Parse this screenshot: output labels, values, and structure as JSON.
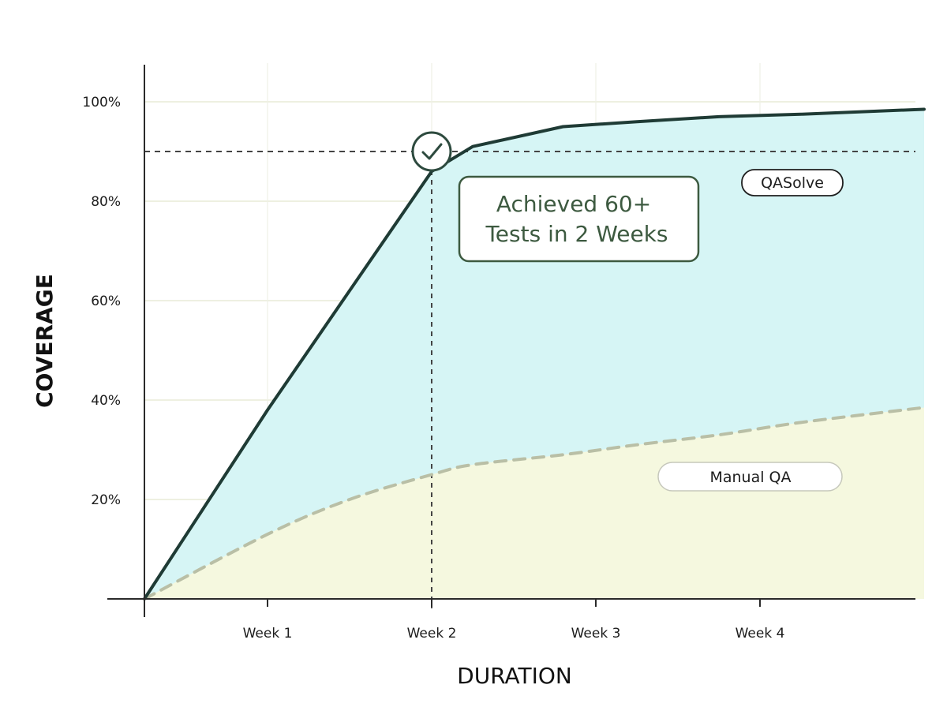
{
  "chart_data": {
    "type": "area",
    "x": [
      0,
      0.75,
      1.25,
      1.75,
      2.0,
      2.55,
      3.0,
      3.5,
      4.0,
      4.75
    ],
    "categories": [
      "Week 1",
      "Week 2",
      "Week 3",
      "Week 4"
    ],
    "category_positions": [
      0.75,
      1.75,
      2.75,
      3.75
    ],
    "series": [
      {
        "name": "QASolve",
        "values": [
          0,
          38,
          62,
          86,
          91,
          95,
          96,
          97,
          97.5,
          98.5
        ],
        "style": "solid",
        "color": "#1f3b35",
        "fill": "#d6f5f5"
      },
      {
        "name": "Manual QA",
        "values": [
          0,
          13,
          20,
          25,
          27,
          29,
          31,
          33,
          35.5,
          38.5
        ],
        "style": "dashed",
        "color": "#b9bfa6",
        "fill": "#f5f8df"
      }
    ],
    "yticks": [
      20,
      40,
      60,
      80,
      100
    ],
    "ytick_labels": [
      "20%",
      "40%",
      "60%",
      "80%",
      "100%"
    ],
    "xlabel": "DURATION",
    "ylabel": "COVERAGE",
    "xlim": [
      0,
      4.75
    ],
    "ylim": [
      0,
      100
    ],
    "target_line": 90,
    "milestone": {
      "x": 1.75,
      "y": 90,
      "text_line1": "Achieved 60+",
      "text_line2": "Tests in 2 Weeks"
    },
    "grid": true,
    "legend": "inline labels (top-right, lower-right)"
  }
}
